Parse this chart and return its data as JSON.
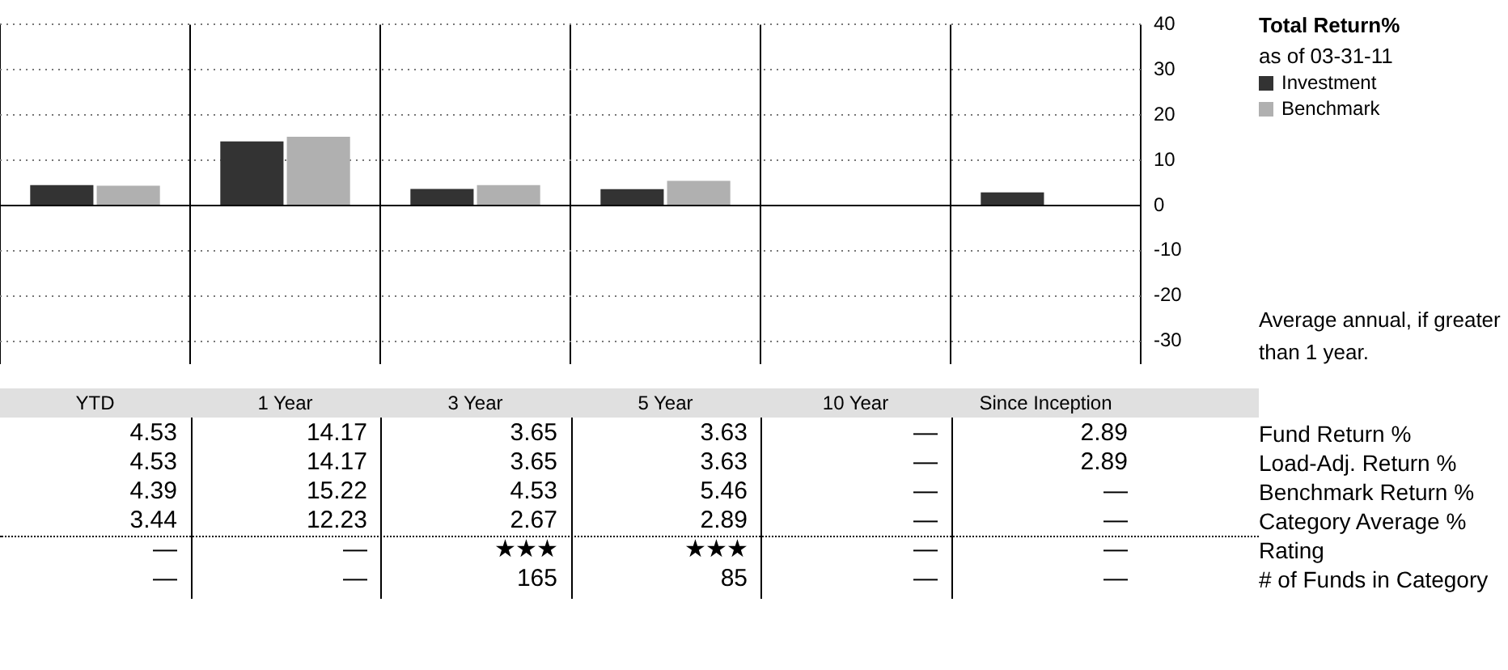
{
  "chart_data": {
    "type": "bar",
    "title": "Total Return%",
    "subtitle": "as of 03-31-11",
    "categories": [
      "YTD",
      "1 Year",
      "3 Year",
      "5 Year",
      "10 Year",
      "Since Inception"
    ],
    "series": [
      {
        "name": "Investment",
        "color": "#333333",
        "values": [
          4.53,
          14.17,
          3.65,
          3.63,
          null,
          2.89
        ],
        "value_labels": [
          "4.53",
          "14.17",
          "3.65",
          "3.63",
          "—",
          "2.89"
        ]
      },
      {
        "name": "Benchmark",
        "color": "#b0b0b0",
        "values": [
          4.39,
          15.22,
          4.53,
          5.46,
          null,
          null
        ],
        "value_labels": [
          "4.39",
          "15.22",
          "4.53",
          "5.46",
          "—",
          "—"
        ]
      }
    ],
    "ylim": [
      -35,
      40
    ],
    "yticks": [
      -30,
      -20,
      -10,
      0,
      10,
      20,
      30,
      40
    ],
    "grid": true,
    "legend": "right",
    "annotations": [
      "Average annual, if greater than 1 year.",
      "Fund Return %",
      "Load-Adj. Return %",
      "Benchmark Return %",
      "Category Average %",
      "Rating",
      "# of Funds in Category",
      "4.53",
      "14.17",
      "3.65",
      "3.63",
      "—",
      "2.89",
      "3.44",
      "12.23",
      "2.67",
      "2.89",
      "—",
      "—",
      "—",
      "—",
      "★★★",
      "★★★",
      "—",
      "—",
      "—",
      "—",
      "165",
      "85",
      "—",
      "—"
    ]
  }
}
